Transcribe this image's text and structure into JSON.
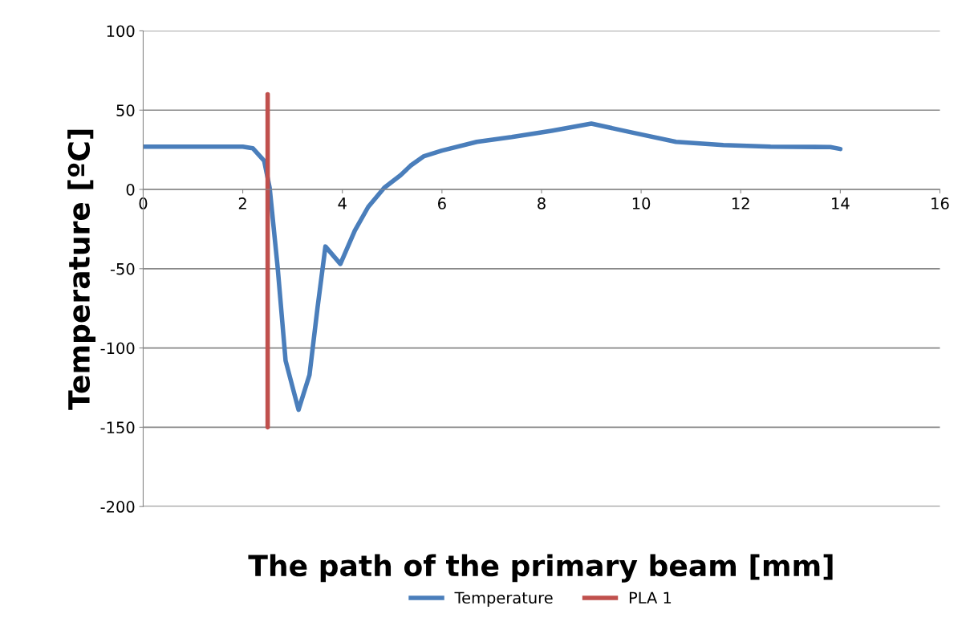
{
  "chart_data": {
    "type": "line",
    "xlabel": "The path of the primary beam [mm]",
    "ylabel": "Temperature [ºC]",
    "xlim": [
      0,
      16
    ],
    "xticks": [
      0,
      2,
      4,
      6,
      8,
      10,
      12,
      14,
      16
    ],
    "ylim": [
      -200,
      100
    ],
    "yticks": [
      -200,
      -150,
      -100,
      -50,
      0,
      50,
      100
    ],
    "grid": "y",
    "legend": "bottom",
    "marker": "none",
    "line_style": "solid",
    "series": [
      {
        "name": "Temperature",
        "color": "#4a7ebb",
        "x": [
          0,
          1,
          2,
          2.2,
          2.43,
          2.54,
          2.7,
          2.86,
          3.12,
          3.34,
          3.5,
          3.66,
          3.96,
          4.25,
          4.52,
          4.84,
          5.17,
          5.37,
          5.64,
          6,
          6.7,
          7.4,
          8.2,
          9,
          9.8,
          10.7,
          11.65,
          12.6,
          13.8,
          14
        ],
        "values": [
          27,
          27,
          27,
          26,
          18,
          1,
          -49,
          -108,
          -139,
          -117,
          -75,
          -36,
          -47,
          -26,
          -11,
          1,
          9,
          15,
          21,
          24.5,
          30,
          33,
          37,
          41.5,
          36,
          30,
          28,
          27,
          26.7,
          25.5
        ]
      },
      {
        "name": "PLA 1",
        "color": "#c0504d",
        "x": [
          2.5,
          2.5
        ],
        "values": [
          -150,
          60
        ]
      }
    ]
  }
}
